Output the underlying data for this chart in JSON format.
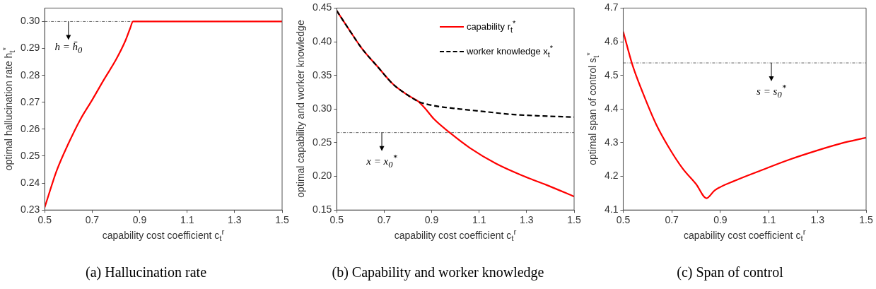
{
  "chart_data": [
    {
      "type": "line",
      "title": "(a) Hallucination rate",
      "xlabel": "capability cost coefficient c$_{t}$$^{r}$",
      "ylabel": "optimal hallucination rate h$_{t}$$^{*}$",
      "xlim": [
        0.5,
        1.5
      ],
      "xticks": [
        0.5,
        0.7,
        0.9,
        1.1,
        1.3,
        1.5
      ],
      "ylim": [
        0.23,
        0.305
      ],
      "yticks": [
        0.23,
        0.24,
        0.25,
        0.26,
        0.27,
        0.28,
        0.29,
        {
          "value": 0.3,
          "label": "0.30"
        }
      ],
      "grid": false,
      "legend": false,
      "marker": "none",
      "series": [
        {
          "color": "#ff0000",
          "line_style": "solid",
          "x": [
            0.5,
            0.55,
            0.6,
            0.65,
            0.7,
            0.75,
            0.8,
            0.84,
            0.86,
            0.872,
            1.0,
            1.2,
            1.5
          ],
          "values": [
            0.231,
            0.2445,
            0.2547,
            0.2636,
            0.2709,
            0.2785,
            0.2858,
            0.2929,
            0.2975,
            0.3,
            0.3,
            0.3,
            0.3
          ]
        }
      ],
      "ref_lines": [
        {
          "axis": "y",
          "value": 0.3,
          "color": "#555555",
          "line_style": "dashed"
        }
      ],
      "annotations": [
        {
          "text": "h = h̄$_{0}$",
          "x": 0.6,
          "y": 0.3
        }
      ]
    },
    {
      "type": "line",
      "title": "(b) Capability and worker knowledge",
      "xlabel": "capability cost coefficient c$_{t}$$^{r}$",
      "ylabel": "optimal capability and worker knowledge",
      "xlim": [
        0.5,
        1.5
      ],
      "xticks": [
        0.5,
        0.7,
        0.9,
        1.1,
        1.3,
        1.5
      ],
      "ylim": [
        0.15,
        0.45
      ],
      "yticks": [
        {
          "value": 0.15,
          "label": "0.15"
        },
        {
          "value": 0.2,
          "label": "0.20"
        },
        0.25,
        {
          "value": 0.3,
          "label": "0.30"
        },
        0.35,
        {
          "value": 0.4,
          "label": "0.40"
        },
        0.45
      ],
      "grid": false,
      "legend": "top right",
      "marker": "none",
      "series": [
        {
          "name": "capability r$_{t}$$^{*}$",
          "color": "#ff0000",
          "line_style": "solid",
          "x": [
            0.5,
            0.552,
            0.606,
            0.672,
            0.737,
            0.802,
            0.845,
            0.872,
            0.91,
            0.976,
            1.062,
            1.171,
            1.29,
            1.399,
            1.5
          ],
          "values": [
            0.446,
            0.418,
            0.39,
            0.363,
            0.337,
            0.32,
            0.311,
            0.301,
            0.285,
            0.265,
            0.242,
            0.219,
            0.2,
            0.185,
            0.17
          ]
        },
        {
          "name": "worker knowledge x$_{t}$$^{*}$",
          "color": "#000000",
          "line_style": "dashed",
          "x": [
            0.5,
            0.552,
            0.606,
            0.672,
            0.737,
            0.802,
            0.845,
            0.91,
            1.019,
            1.128,
            1.236,
            1.345,
            1.5
          ],
          "values": [
            0.446,
            0.418,
            0.39,
            0.363,
            0.337,
            0.32,
            0.311,
            0.305,
            0.3,
            0.296,
            0.292,
            0.29,
            0.288
          ]
        }
      ],
      "ref_lines": [
        {
          "axis": "y",
          "value": 0.265,
          "color": "#555555",
          "line_style": "dashed"
        }
      ],
      "annotations": [
        {
          "text": "x = x$_{0}$$^{*}$",
          "x": 0.69,
          "y": 0.265
        }
      ]
    },
    {
      "type": "line",
      "title": "(c) Span of control",
      "xlabel": "capability cost coefficient c$_{t}$$^{r}$",
      "ylabel": "optimal span of control s$_{t}$$^{*}$",
      "xlim": [
        0.5,
        1.5
      ],
      "xticks": [
        0.5,
        0.7,
        0.9,
        1.1,
        1.3,
        1.5
      ],
      "ylim": [
        4.1,
        4.7
      ],
      "yticks": [
        4.1,
        4.2,
        4.3,
        4.4,
        4.5,
        4.6,
        4.7
      ],
      "grid": false,
      "legend": false,
      "marker": "none",
      "series": [
        {
          "color": "#ff0000",
          "line_style": "solid",
          "x": [
            0.5,
            0.538,
            0.582,
            0.636,
            0.691,
            0.745,
            0.8,
            0.843,
            0.876,
            0.963,
            1.072,
            1.181,
            1.29,
            1.398,
            1.5
          ],
          "values": [
            4.63,
            4.531,
            4.446,
            4.354,
            4.282,
            4.223,
            4.177,
            4.135,
            4.158,
            4.188,
            4.219,
            4.249,
            4.275,
            4.298,
            4.315
          ]
        }
      ],
      "ref_lines": [
        {
          "axis": "y",
          "value": 4.537,
          "color": "#555555",
          "line_style": "dashed"
        }
      ],
      "annotations": [
        {
          "text": "s = s$_{0}$$^{*}$",
          "x": 1.11,
          "y": 4.537
        }
      ]
    }
  ]
}
